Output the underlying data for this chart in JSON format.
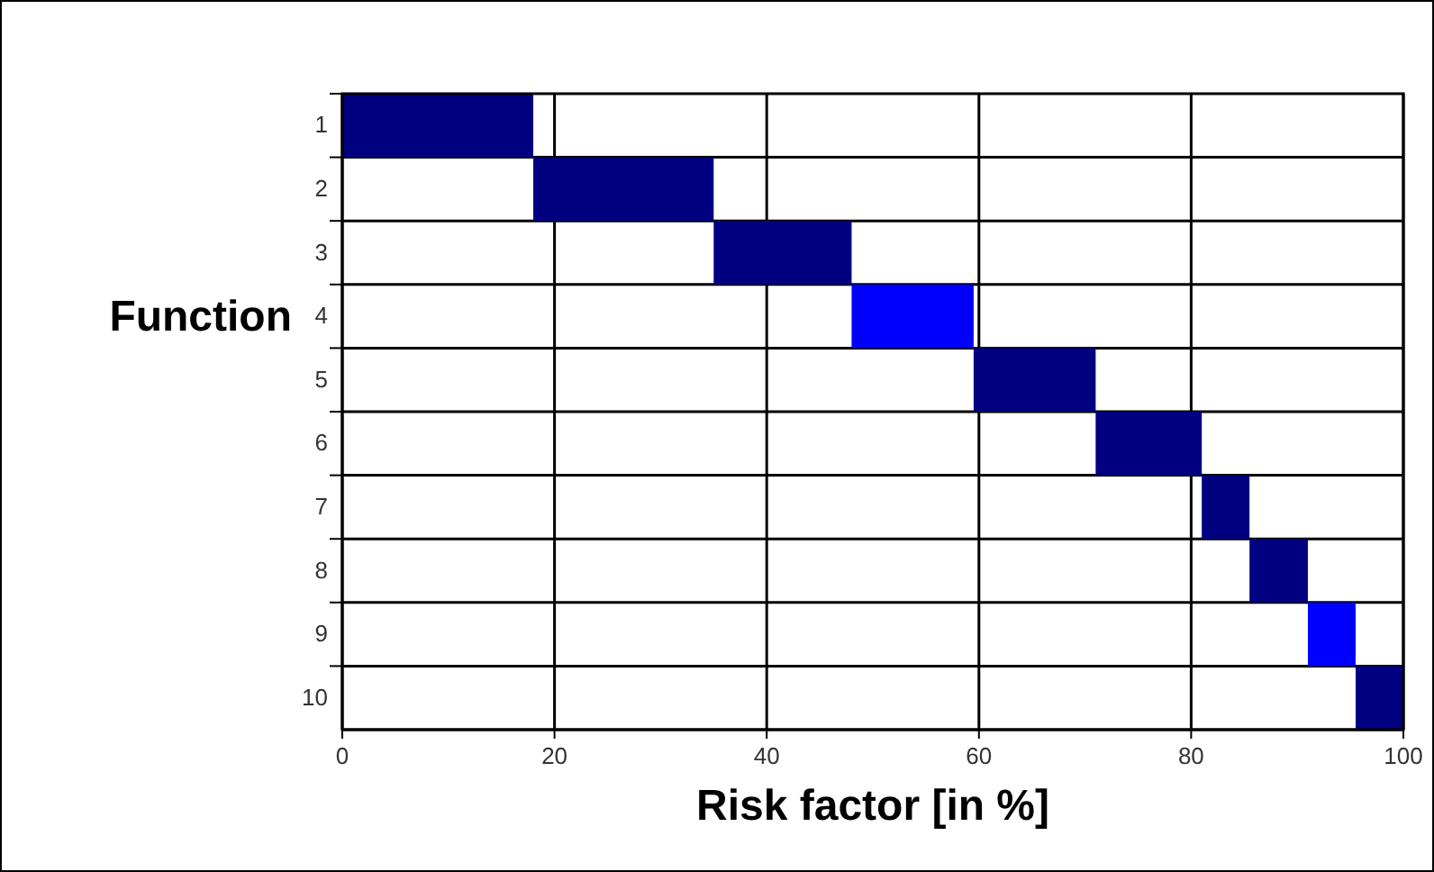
{
  "chart_data": {
    "type": "bar",
    "orientation": "horizontal",
    "xlabel": "Risk factor [in %]",
    "ylabel": "Function",
    "categories": [
      "1",
      "2",
      "3",
      "4",
      "5",
      "6",
      "7",
      "8",
      "9",
      "10"
    ],
    "base": [
      0,
      18,
      35,
      48,
      59.5,
      71,
      81,
      85.5,
      91,
      95.5
    ],
    "values": [
      18,
      17,
      13,
      11.5,
      11.5,
      10,
      4.5,
      5.5,
      4.5,
      4.5
    ],
    "colors": [
      "#000080",
      "#000080",
      "#000080",
      "#0000ff",
      "#000080",
      "#000080",
      "#000080",
      "#000080",
      "#0000ff",
      "#000080"
    ],
    "xlim": [
      0,
      100
    ],
    "xticks": [
      0,
      20,
      40,
      60,
      80,
      100
    ],
    "grid": true
  }
}
